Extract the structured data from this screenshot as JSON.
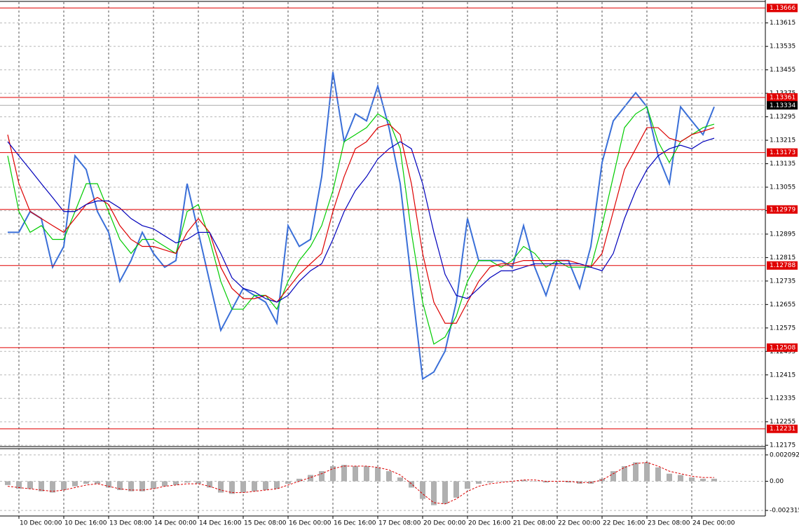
{
  "chart_data": [
    {
      "type": "line",
      "categories": [
        null,
        "10 Dec 00:00",
        null,
        null,
        null,
        "10 Dec 16:00",
        null,
        null,
        null,
        "13 Dec 08:00",
        null,
        null,
        null,
        "14 Dec 00:00",
        null,
        null,
        null,
        "14 Dec 16:00",
        null,
        null,
        null,
        "15 Dec 08:00",
        null,
        null,
        null,
        "16 Dec 00:00",
        null,
        null,
        null,
        "16 Dec 16:00",
        null,
        null,
        null,
        "17 Dec 08:00",
        null,
        null,
        null,
        "20 Dec 00:00",
        null,
        null,
        null,
        "20 Dec 16:00",
        null,
        null,
        null,
        "21 Dec 08:00",
        null,
        null,
        null,
        "22 Dec 00:00",
        null,
        null,
        null,
        "22 Dec 16:00",
        null,
        null,
        null,
        "23 Dec 08:00",
        null,
        null,
        null,
        "24 Dec 00:00",
        null,
        null
      ],
      "series": [
        {
          "color": "#3a6fd8",
          "values": [
            1.12901,
            1.12901,
            1.12972,
            1.12948,
            1.12782,
            1.12853,
            1.13162,
            1.13115,
            1.12972,
            1.12901,
            1.12734,
            1.12805,
            1.12901,
            1.12829,
            1.12782,
            1.12805,
            1.13067,
            1.12901,
            1.12734,
            1.12567,
            1.12639,
            1.1271,
            1.12686,
            1.12663,
            1.12591,
            1.12924,
            1.12853,
            1.12877,
            1.13091,
            1.13448,
            1.1321,
            1.13305,
            1.13281,
            1.134,
            1.13258,
            1.13067,
            1.12734,
            1.12401,
            1.12425,
            1.12496,
            1.12663,
            1.12948,
            1.12805,
            1.12805,
            1.12805,
            1.12782,
            1.12924,
            1.12782,
            1.12686,
            1.12805,
            1.12805,
            1.1271,
            1.12853,
            1.13139,
            1.13281,
            1.13329,
            1.13377,
            1.13329,
            1.13162,
            1.13067,
            1.13329,
            1.13281,
            1.13234,
            1.13329
          ]
        },
        {
          "color": "#00cc00",
          "values": [
            1.13162,
            1.12972,
            1.12901,
            1.12924,
            1.12877,
            1.12877,
            1.12972,
            1.13067,
            1.13067,
            1.12972,
            1.12877,
            1.12829,
            1.12877,
            1.12877,
            1.12853,
            1.12829,
            1.12972,
            1.12996,
            1.12877,
            1.12734,
            1.12639,
            1.12639,
            1.12686,
            1.12686,
            1.12639,
            1.12734,
            1.12805,
            1.12853,
            1.12924,
            1.13043,
            1.1321,
            1.13234,
            1.13258,
            1.13305,
            1.13281,
            1.13186,
            1.12901,
            1.12663,
            1.1252,
            1.12544,
            1.12615,
            1.12734,
            1.12805,
            1.12805,
            1.12782,
            1.12805,
            1.12853,
            1.12829,
            1.12782,
            1.12805,
            1.12782,
            1.12782,
            1.12782,
            1.12924,
            1.13091,
            1.13258,
            1.13305,
            1.13329,
            1.1321,
            1.13139,
            1.1321,
            1.13234,
            1.13258,
            1.1327
          ]
        },
        {
          "color": "#dd0000",
          "values": [
            1.13234,
            1.13067,
            1.12972,
            1.12948,
            1.12924,
            1.12901,
            1.12948,
            1.12996,
            1.1302,
            1.12996,
            1.12924,
            1.12877,
            1.12853,
            1.12853,
            1.12841,
            1.12829,
            1.12901,
            1.12948,
            1.12901,
            1.12782,
            1.1271,
            1.12675,
            1.12675,
            1.12686,
            1.12663,
            1.1271,
            1.12758,
            1.12794,
            1.12829,
            1.12972,
            1.13091,
            1.13186,
            1.1321,
            1.13258,
            1.1327,
            1.13234,
            1.13067,
            1.12829,
            1.12663,
            1.12591,
            1.12591,
            1.12663,
            1.12734,
            1.12782,
            1.12794,
            1.12794,
            1.12805,
            1.12805,
            1.12805,
            1.12805,
            1.12805,
            1.12794,
            1.12782,
            1.12829,
            1.12972,
            1.13115,
            1.13186,
            1.13258,
            1.13258,
            1.13222,
            1.1321,
            1.13234,
            1.13246,
            1.13258
          ]
        },
        {
          "color": "#0000bb",
          "values": [
            1.1321,
            1.13162,
            1.13115,
            1.13067,
            1.1302,
            1.12972,
            1.12972,
            1.12996,
            1.13008,
            1.13008,
            1.12984,
            1.12948,
            1.12924,
            1.12913,
            1.12889,
            1.12865,
            1.12877,
            1.12901,
            1.12901,
            1.12829,
            1.12746,
            1.1271,
            1.12698,
            1.12675,
            1.12663,
            1.12686,
            1.12734,
            1.1277,
            1.12794,
            1.12877,
            1.12972,
            1.13043,
            1.13091,
            1.13151,
            1.13186,
            1.1321,
            1.13186,
            1.13067,
            1.12901,
            1.12758,
            1.12686,
            1.12675,
            1.1271,
            1.12746,
            1.1277,
            1.1277,
            1.12782,
            1.12794,
            1.12794,
            1.12794,
            1.12794,
            1.12794,
            1.12782,
            1.1277,
            1.12829,
            1.12948,
            1.13043,
            1.13115,
            1.13162,
            1.13186,
            1.13198,
            1.13186,
            1.1321,
            1.13222
          ]
        }
      ],
      "ylim": [
        1.12173,
        1.13686
      ],
      "yticks": [
        1.13615,
        1.13535,
        1.13455,
        1.13375,
        1.13295,
        1.13215,
        1.13135,
        1.13055,
        1.12975,
        1.12895,
        1.12815,
        1.12735,
        1.12655,
        1.12575,
        1.12495,
        1.12415,
        1.12335,
        1.12255,
        1.12175
      ],
      "grid": true,
      "levels": [
        {
          "value": 1.13666,
          "color": "#e00000"
        },
        {
          "value": 1.13361,
          "color": "#e00000"
        },
        {
          "value": 1.13173,
          "color": "#e00000"
        },
        {
          "value": 1.12979,
          "color": "#e00000"
        },
        {
          "value": 1.12788,
          "color": "#e00000"
        },
        {
          "value": 1.12508,
          "color": "#e00000"
        },
        {
          "value": 1.12231,
          "color": "#e00000"
        },
        {
          "value": 1.13334,
          "color": "#000000"
        }
      ]
    },
    {
      "type": "bar",
      "color": "#b0b0b0",
      "values": [
        -0.0003,
        -0.0006,
        -0.0006,
        -0.0008,
        -0.0009,
        -0.0007,
        -0.0004,
        -0.0002,
        -0.0002,
        -0.0005,
        -0.0007,
        -0.0008,
        -0.0008,
        -0.0006,
        -0.0004,
        -0.0003,
        -0.0001,
        -0.0002,
        -0.0005,
        -0.0009,
        -0.001,
        -0.0009,
        -0.0008,
        -0.0007,
        -0.0006,
        -0.0002,
        0.0002,
        0.0005,
        0.0008,
        0.0012,
        0.0013,
        0.0012,
        0.0012,
        0.0011,
        0.0008,
        0.0003,
        -0.0005,
        -0.0014,
        -0.0019,
        -0.0018,
        -0.0013,
        -0.0006,
        -0.0002,
        -0.0001,
        0,
        0,
        0.0001,
        0,
        -0.0001,
        0,
        -0.0001,
        -0.0002,
        -0.0002,
        0.0002,
        0.0008,
        0.0012,
        0.0015,
        0.0015,
        0.0011,
        0.0006,
        0.0005,
        0.0003,
        0.0002,
        0.0002
      ],
      "signal": {
        "color": "#dd0000",
        "values": [
          -0.0004,
          -0.0005,
          -0.0006,
          -0.0007,
          -0.0008,
          -0.0007,
          -0.0005,
          -0.0003,
          -0.0002,
          -0.0004,
          -0.0006,
          -0.0007,
          -0.0007,
          -0.0006,
          -0.0004,
          -0.0003,
          -0.0002,
          -0.0002,
          -0.0004,
          -0.0007,
          -0.0009,
          -0.0009,
          -0.0008,
          -0.0007,
          -0.0006,
          -0.0003,
          0,
          0.0003,
          0.0006,
          0.001,
          0.0012,
          0.0012,
          0.0012,
          0.0011,
          0.0009,
          0.0005,
          -0.0002,
          -0.001,
          -0.0017,
          -0.0018,
          -0.0014,
          -0.0008,
          -0.0004,
          -0.0002,
          -0.0001,
          0,
          0.0001,
          0.0001,
          0,
          0,
          0,
          -0.0001,
          -0.0001,
          0.0001,
          0.0006,
          0.0011,
          0.0014,
          0.0015,
          0.0012,
          0.0008,
          0.0006,
          0.0004,
          0.0003,
          0.0003
        ]
      },
      "ylim": [
        -0.0027,
        0.00253
      ],
      "yticks": [
        0.002092,
        {
          "value": 0,
          "label": "0.00"
        },
        -0.002315
      ]
    }
  ]
}
